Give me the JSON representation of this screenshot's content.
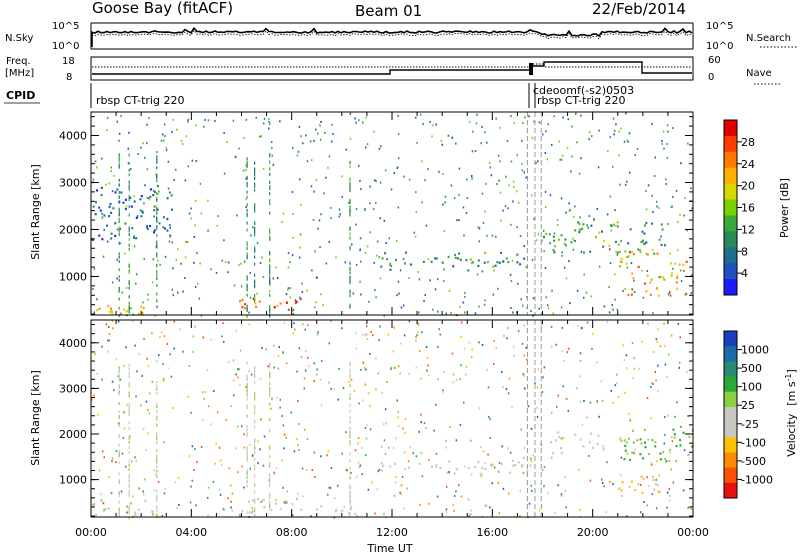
{
  "header": {
    "station": "Goose Bay (fitACF)",
    "beam": "Beam 01",
    "date": "22/Feb/2014"
  },
  "top_panels": {
    "nsky_label": "N.Sky",
    "nsky_ticks": [
      "10^5",
      "10^0"
    ],
    "nsearch_label": "N.Search",
    "nsearch_ticks": [
      "10^5",
      "10^0"
    ],
    "freq_label_1": "Freq.",
    "freq_label_2": "[MHz]",
    "freq_ticks": [
      "18",
      "8"
    ],
    "nave_label": "Nave",
    "nave_ticks": [
      "60",
      "0"
    ],
    "cpid_label": "CPID",
    "cpid_segments": [
      {
        "label": "rbsp CT-trig 220",
        "start_hour": 0.0
      },
      {
        "label": "cdeoomf(-s2)0503",
        "start_hour": 17.4
      },
      {
        "label": "rbsp CT-trig 220",
        "start_hour": 17.7
      }
    ]
  },
  "power_colorbar": {
    "title": "Power [dB]",
    "ticks": [
      "28",
      "24",
      "20",
      "16",
      "12",
      "8",
      "4"
    ],
    "colors": [
      "#e00000",
      "#ff3c00",
      "#ff7a00",
      "#ffb000",
      "#d8d800",
      "#7ad000",
      "#3aa83a",
      "#2a8a5a",
      "#1e6e8e",
      "#2050c0",
      "#1a1aff"
    ]
  },
  "velocity_colorbar": {
    "title_main": "Velocity",
    "title_unit": "[m s",
    "title_sup": "-1",
    "title_close": "]",
    "ticks": [
      "1000",
      "500",
      "100",
      "25",
      "-25",
      "-100",
      "-500",
      "-1000"
    ],
    "colors": [
      "#1a40c0",
      "#1e6aa8",
      "#2a8a70",
      "#2aa83a",
      "#8ad040",
      "#c8c8c0",
      "#c8c8c0",
      "#ffc000",
      "#ff8a00",
      "#ff5000",
      "#e81010"
    ]
  },
  "chart_data": [
    {
      "type": "heatmap",
      "name": "Power",
      "xlabel": "Time UT",
      "ylabel": "Slant Range [km]",
      "x_ticks": [
        "00:00",
        "04:00",
        "08:00",
        "12:00",
        "16:00",
        "20:00",
        "00:00"
      ],
      "y_ticks": [
        "1000",
        "2000",
        "3000",
        "4000"
      ],
      "xlim_hours": [
        0,
        24
      ],
      "ylim_km": [
        180,
        4500
      ],
      "clim_db": [
        0,
        30
      ],
      "features": [
        {
          "desc": "near-range band",
          "t0": 0.0,
          "t1": 2.2,
          "r0": 200,
          "r1": 400,
          "value": 18
        },
        {
          "desc": "rising diagonal echoes",
          "t0": 0.0,
          "t1": 3.4,
          "r0": 1800,
          "r1": 3000,
          "value": 6
        },
        {
          "desc": "strong echo patch",
          "t0": 5.8,
          "t1": 8.4,
          "r0": 300,
          "r1": 550,
          "value": 26
        },
        {
          "desc": "horizontal band",
          "t0": 11.2,
          "t1": 17.5,
          "r0": 1150,
          "r1": 1550,
          "value": 10
        },
        {
          "desc": "upper band",
          "t0": 18.0,
          "t1": 23.0,
          "r0": 1500,
          "r1": 2200,
          "value": 12
        },
        {
          "desc": "enhanced patch",
          "t0": 21.0,
          "t1": 23.8,
          "r0": 600,
          "r1": 1600,
          "value": 20
        }
      ]
    },
    {
      "type": "heatmap",
      "name": "Velocity",
      "xlabel": "Time UT",
      "ylabel": "Slant Range [km]",
      "x_ticks": [
        "00:00",
        "04:00",
        "08:00",
        "12:00",
        "16:00",
        "20:00",
        "00:00"
      ],
      "y_ticks": [
        "1000",
        "2000",
        "3000",
        "4000"
      ],
      "xlim_hours": [
        0,
        24
      ],
      "ylim_km": [
        180,
        4500
      ],
      "clim_ms": [
        -1000,
        1000
      ],
      "features": [
        {
          "desc": "near-range mixed",
          "t0": 0.0,
          "t1": 2.5,
          "r0": 200,
          "r1": 600,
          "value": 100
        },
        {
          "desc": "afternoon low-velocity band",
          "t0": 5.8,
          "t1": 10.5,
          "r0": 250,
          "r1": 600,
          "value": -120
        },
        {
          "desc": "ground scatter band",
          "t0": 11.5,
          "t1": 17.5,
          "r0": 1150,
          "r1": 1500,
          "value": 0
        },
        {
          "desc": "grey patch",
          "t0": 18.3,
          "t1": 20.5,
          "r0": 1600,
          "r1": 2100,
          "value": 0
        },
        {
          "desc": "positive velocity patch",
          "t0": 21.0,
          "t1": 24.0,
          "r0": 1400,
          "r1": 2200,
          "value": 300
        },
        {
          "desc": "negative velocity patch",
          "t0": 21.0,
          "t1": 22.8,
          "r0": 600,
          "r1": 1100,
          "value": -300
        }
      ]
    }
  ]
}
